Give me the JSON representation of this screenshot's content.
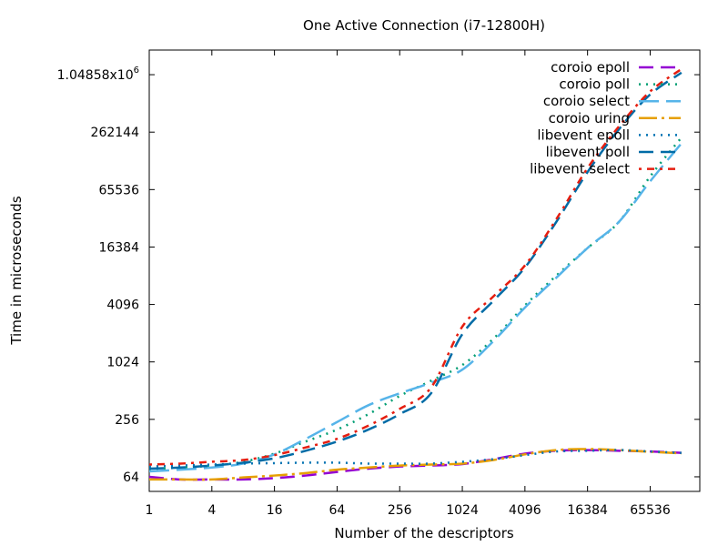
{
  "chart_data": {
    "type": "line",
    "title": "One Active Connection (i7-12800H)",
    "xlabel": "Number of the descriptors",
    "ylabel": "Time in microseconds",
    "x_scale": "log2",
    "y_scale": "log2",
    "xlim": [
      1,
      196608
    ],
    "ylim": [
      45,
      1900000
    ],
    "x_ticks": [
      {
        "value": 1,
        "label": "1"
      },
      {
        "value": 4,
        "label": "4"
      },
      {
        "value": 16,
        "label": "16"
      },
      {
        "value": 64,
        "label": "64"
      },
      {
        "value": 256,
        "label": "256"
      },
      {
        "value": 1024,
        "label": "1024"
      },
      {
        "value": 4096,
        "label": "4096"
      },
      {
        "value": 16384,
        "label": "16384"
      },
      {
        "value": 65536,
        "label": "65536"
      }
    ],
    "y_ticks": [
      {
        "value": 64,
        "label": "64"
      },
      {
        "value": 256,
        "label": "256"
      },
      {
        "value": 1024,
        "label": "1024"
      },
      {
        "value": 4096,
        "label": "4096"
      },
      {
        "value": 16384,
        "label": "16384"
      },
      {
        "value": 65536,
        "label": "65536"
      },
      {
        "value": 262144,
        "label": "262144"
      },
      {
        "value": 1048576,
        "label": "1.04858x10",
        "sup": "6"
      }
    ],
    "grid": false,
    "legend_position": "top-right",
    "x": [
      1,
      2,
      4,
      8,
      16,
      32,
      64,
      128,
      256,
      512,
      1024,
      2048,
      4096,
      8192,
      16384,
      32768,
      65536,
      131072
    ],
    "series": [
      {
        "name": "coroio epoll",
        "color": "#9400d3",
        "dash": "16,8",
        "width": 2.5,
        "values": [
          64,
          60,
          60,
          60,
          62,
          66,
          72,
          78,
          82,
          84,
          87,
          98,
          112,
          120,
          122,
          120,
          118,
          114
        ]
      },
      {
        "name": "coroio poll",
        "color": "#009e73",
        "dash": "2,6",
        "width": 2.5,
        "values": [
          77,
          80,
          84,
          92,
          112,
          150,
          200,
          290,
          450,
          650,
          950,
          1800,
          4000,
          8200,
          16000,
          30000,
          90000,
          230000
        ]
      },
      {
        "name": "coroio select",
        "color": "#56b4e9",
        "dash": "22,8",
        "width": 2.5,
        "values": [
          73,
          76,
          80,
          88,
          110,
          160,
          240,
          360,
          480,
          620,
          850,
          1700,
          3800,
          7800,
          16000,
          30000,
          80000,
          200000
        ]
      },
      {
        "name": "coroio uring",
        "color": "#e69f00",
        "dash": "20,5,3,5",
        "width": 2.5,
        "values": [
          60,
          60,
          60,
          63,
          66,
          70,
          76,
          80,
          84,
          86,
          88,
          96,
          110,
          122,
          125,
          122,
          117,
          113
        ]
      },
      {
        "name": "libevent epoll",
        "color": "#0072b2",
        "dash": "2,6",
        "width": 2.5,
        "values": [
          82,
          84,
          86,
          88,
          89,
          90,
          90,
          88,
          88,
          88,
          92,
          98,
          108,
          118,
          120,
          122,
          118,
          114
        ]
      },
      {
        "name": "libevent poll",
        "color": "#006ba6",
        "dash": "16,8",
        "width": 2.5,
        "values": [
          78,
          80,
          84,
          90,
          100,
          120,
          150,
          200,
          290,
          480,
          2000,
          4500,
          10000,
          30000,
          100000,
          280000,
          650000,
          1100000
        ]
      },
      {
        "name": "libevent select",
        "color": "#e51e10",
        "dash": "3,6,8,6",
        "width": 2.5,
        "values": [
          86,
          88,
          92,
          96,
          108,
          130,
          160,
          220,
          330,
          550,
          2400,
          5000,
          10500,
          32000,
          110000,
          300000,
          700000,
          1200000
        ]
      }
    ]
  }
}
